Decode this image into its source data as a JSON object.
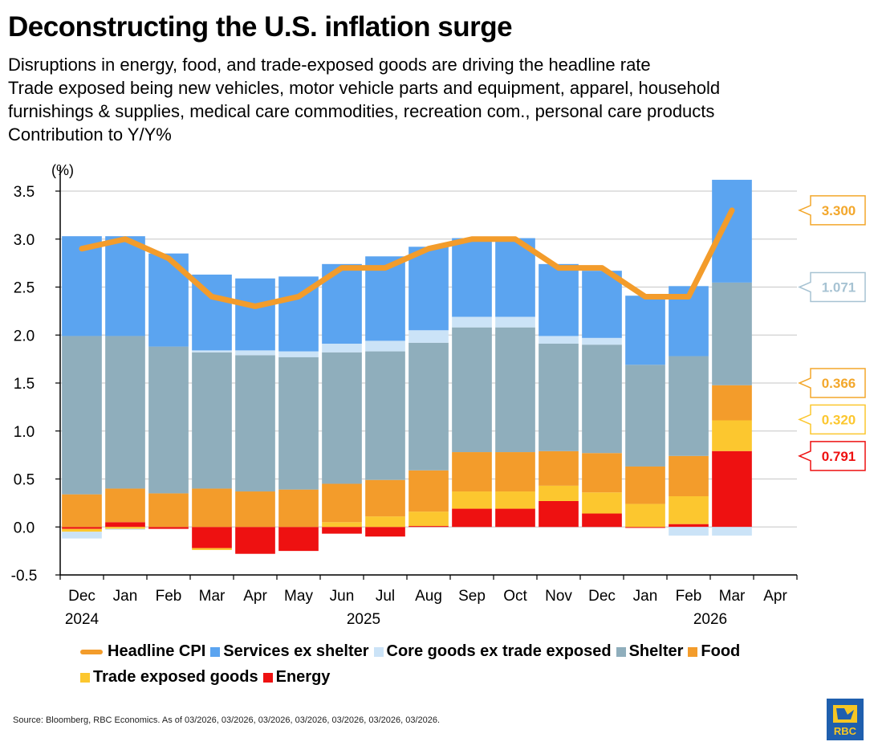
{
  "title": "Deconstructing the U.S. inflation surge",
  "subtitle_lines": [
    "Disruptions in energy, food, and trade-exposed goods are driving the headline rate",
    "Trade exposed being new vehicles, motor vehicle parts and equipment, apparel, household",
    "furnishings & supplies, medical care commodities, recreation com., personal care products",
    "Contribution to Y/Y%"
  ],
  "source": "Source: Bloomberg, RBC Economics. As of 03/2026, 03/2026, 03/2026, 03/2026, 03/2026, 03/2026, 03/2026.",
  "logo_text": "RBC",
  "colors": {
    "headline": "#F39C2B",
    "services": "#5BA4F0",
    "coregoods": "#CBE3F7",
    "shelter": "#8FAEBC",
    "food": "#F39C2B",
    "trade": "#FCC72F",
    "energy": "#EE1111"
  },
  "chart_data": {
    "type": "bar",
    "stacked": true,
    "y_unit_label": "(%)",
    "ylim": [
      -0.5,
      3.5
    ],
    "yticks": [
      "3.5",
      "3.0",
      "2.5",
      "2.0",
      "1.5",
      "1.0",
      "0.5",
      "0.0",
      "-0.5"
    ],
    "ytick_values": [
      3.5,
      3.0,
      2.5,
      2.0,
      1.5,
      1.0,
      0.5,
      0.0,
      -0.5
    ],
    "grid": true,
    "categories": [
      "Dec",
      "Jan",
      "Feb",
      "Mar",
      "Apr",
      "May",
      "Jun",
      "Jul",
      "Aug",
      "Sep",
      "Oct",
      "Nov",
      "Dec",
      "Jan",
      "Feb",
      "Mar",
      "Apr"
    ],
    "year_labels": [
      {
        "label": "2024",
        "category_index": 0
      },
      {
        "label": "2025",
        "category_index": 6.5
      },
      {
        "label": "2026",
        "category_index": 14.5
      }
    ],
    "series": [
      {
        "name": "Energy",
        "key": "energy",
        "values": [
          -0.02,
          0.05,
          -0.02,
          -0.22,
          -0.28,
          -0.25,
          -0.07,
          -0.1,
          0.01,
          0.19,
          0.19,
          0.27,
          0.14,
          -0.01,
          0.03,
          0.791,
          null
        ]
      },
      {
        "name": "Trade exposed goods",
        "key": "trade",
        "values": [
          -0.03,
          -0.02,
          0.0,
          -0.02,
          0.0,
          0.0,
          0.05,
          0.11,
          0.15,
          0.18,
          0.18,
          0.16,
          0.22,
          0.24,
          0.29,
          0.32,
          null
        ]
      },
      {
        "name": "Food",
        "key": "food",
        "values": [
          0.34,
          0.35,
          0.35,
          0.4,
          0.37,
          0.39,
          0.4,
          0.38,
          0.43,
          0.41,
          0.41,
          0.36,
          0.41,
          0.39,
          0.42,
          0.366,
          null
        ]
      },
      {
        "name": "Shelter",
        "key": "shelter",
        "values": [
          1.65,
          1.59,
          1.53,
          1.42,
          1.42,
          1.38,
          1.37,
          1.34,
          1.33,
          1.3,
          1.3,
          1.12,
          1.13,
          1.06,
          1.04,
          1.07,
          null
        ]
      },
      {
        "name": "Core goods ex trade exposed",
        "key": "coregoods",
        "values": [
          -0.07,
          -0.01,
          0.0,
          0.02,
          0.05,
          0.06,
          0.09,
          0.11,
          0.13,
          0.11,
          0.11,
          0.08,
          0.07,
          0.0,
          -0.09,
          -0.09,
          null
        ]
      },
      {
        "name": "Services ex shelter",
        "key": "services",
        "values": [
          1.04,
          1.04,
          0.97,
          0.79,
          0.75,
          0.78,
          0.83,
          0.88,
          0.87,
          0.82,
          0.82,
          0.75,
          0.7,
          0.72,
          0.73,
          1.071,
          null
        ]
      }
    ],
    "headline": {
      "name": "Headline CPI",
      "key": "headline",
      "values": [
        2.9,
        3.0,
        2.8,
        2.4,
        2.3,
        2.4,
        2.7,
        2.7,
        2.9,
        3.0,
        3.0,
        2.7,
        2.7,
        2.4,
        2.4,
        3.3,
        null
      ]
    },
    "callouts": [
      {
        "label": "3.300",
        "value": 3.3,
        "color": "#F3A72B"
      },
      {
        "label": "1.071",
        "value": 2.5,
        "color": "#A7C3D3"
      },
      {
        "label": "0.366",
        "value": 1.5,
        "color": "#F3A72B"
      },
      {
        "label": "0.320",
        "value": 1.12,
        "color": "#FCC72F"
      },
      {
        "label": "0.791",
        "value": 0.74,
        "color": "#EE1111"
      }
    ]
  },
  "legend_rows": [
    [
      {
        "label": "Headline CPI",
        "key": "headline",
        "kind": "line"
      },
      {
        "label": "Services ex shelter",
        "key": "services",
        "kind": "box"
      },
      {
        "label": "Core goods ex trade exposed",
        "key": "coregoods",
        "kind": "box"
      },
      {
        "label": "Shelter",
        "key": "shelter",
        "kind": "box"
      },
      {
        "label": "Food",
        "key": "food",
        "kind": "box"
      }
    ],
    [
      {
        "label": "Trade exposed goods",
        "key": "trade",
        "kind": "box"
      },
      {
        "label": "Energy",
        "key": "energy",
        "kind": "box"
      }
    ]
  ]
}
